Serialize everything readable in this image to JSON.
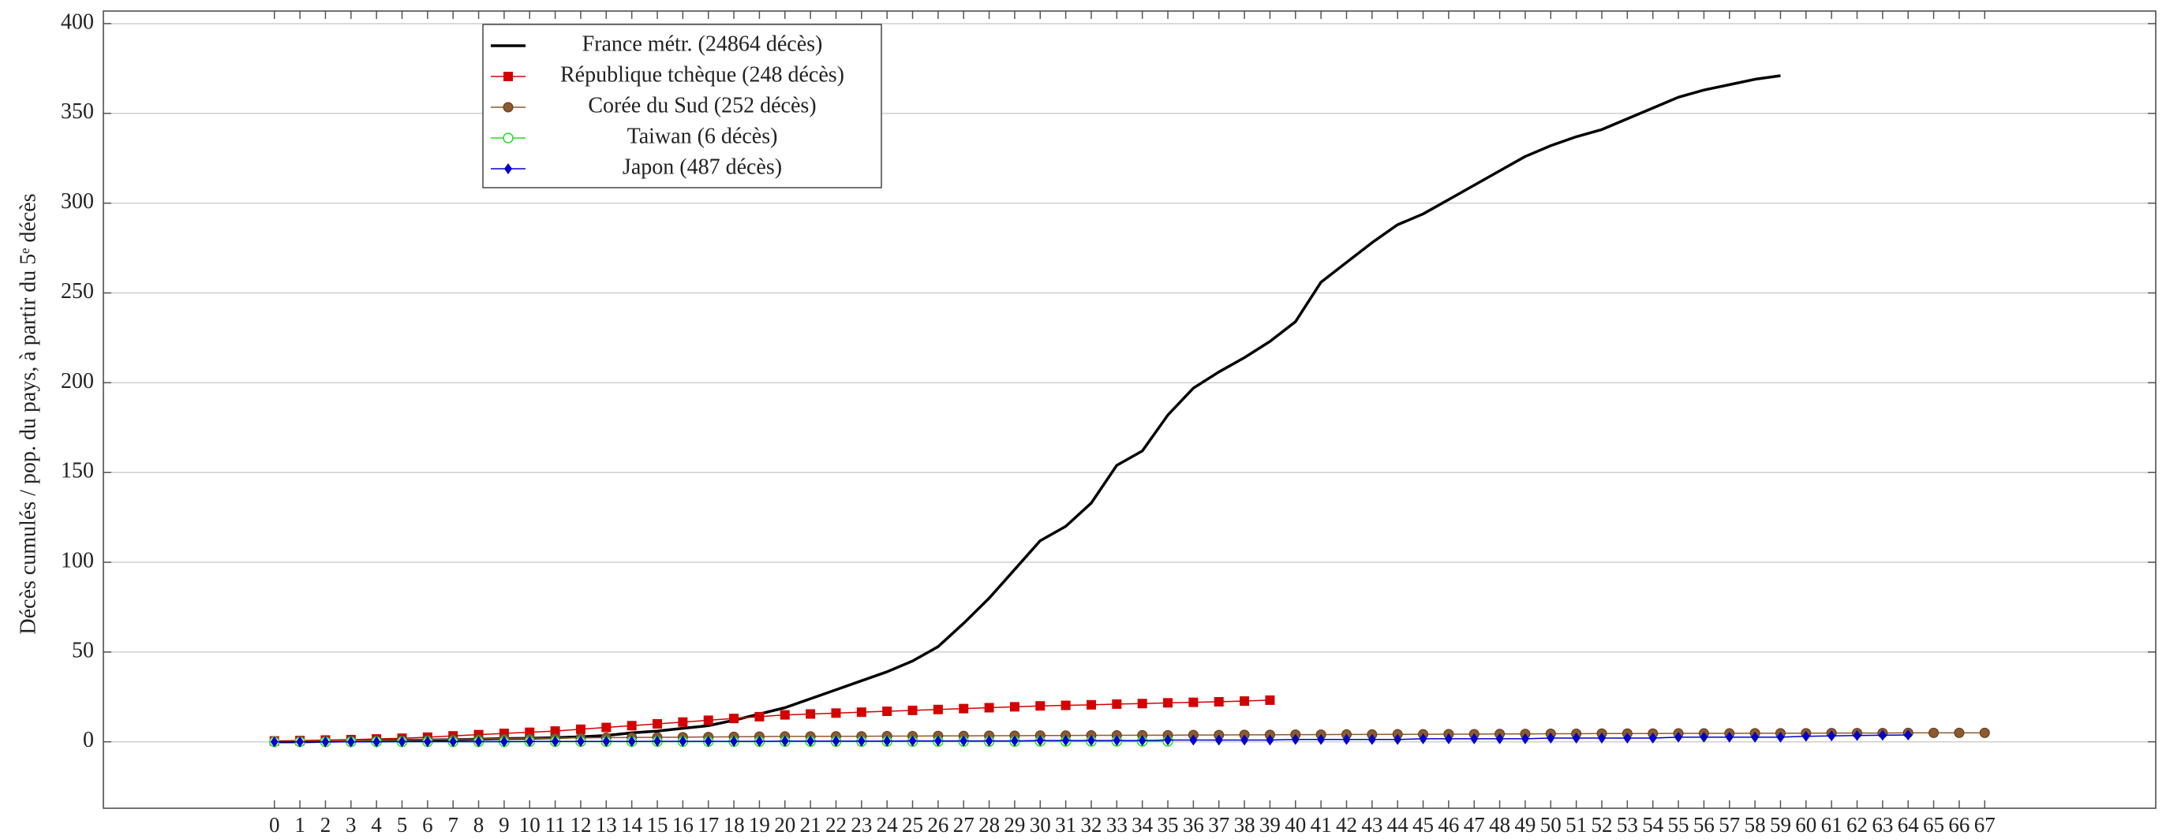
{
  "chart_data": {
    "type": "line",
    "y_label": "Décès cumulés / pop. du pays, à partir du 5ᵉ décès",
    "x": [
      0,
      1,
      2,
      3,
      4,
      5,
      6,
      7,
      8,
      9,
      10,
      11,
      12,
      13,
      14,
      15,
      16,
      17,
      18,
      19,
      20,
      21,
      22,
      23,
      24,
      25,
      26,
      27,
      28,
      29,
      30,
      31,
      32,
      33,
      34,
      35,
      36,
      37,
      38,
      39,
      40,
      41,
      42,
      43,
      44,
      45,
      46,
      47,
      48,
      49,
      50,
      51,
      52,
      53,
      54,
      55,
      56,
      57,
      58,
      59,
      60,
      61,
      62,
      63,
      64,
      65,
      66,
      67
    ],
    "xlim": [
      -6.7,
      73.7
    ],
    "xticks": [
      0,
      1,
      2,
      3,
      4,
      5,
      6,
      7,
      8,
      9,
      10,
      11,
      12,
      13,
      14,
      15,
      16,
      17,
      18,
      19,
      20,
      21,
      22,
      23,
      24,
      25,
      26,
      27,
      28,
      29,
      30,
      31,
      32,
      33,
      34,
      35,
      36,
      37,
      38,
      39,
      40,
      41,
      42,
      43,
      44,
      45,
      46,
      47,
      48,
      49,
      50,
      51,
      52,
      53,
      54,
      55,
      56,
      57,
      58,
      59,
      60,
      61,
      62,
      63,
      64,
      65,
      66,
      67
    ],
    "ylim": [
      -37,
      407
    ],
    "yticks": [
      0,
      50,
      100,
      150,
      200,
      250,
      300,
      350,
      400
    ],
    "grid": true,
    "legend": "upper left",
    "series": [
      {
        "name": "France métr. (24864 décès)",
        "color": "#000000",
        "marker": "none",
        "values": [
          0,
          0,
          0.3,
          0.5,
          0.7,
          0.9,
          1,
          1.2,
          1.5,
          1.8,
          2,
          2.3,
          2.8,
          3.5,
          5,
          6,
          7.5,
          9,
          12,
          15.5,
          19,
          24,
          29,
          34,
          39,
          45,
          53,
          66,
          80,
          96,
          112,
          120,
          133,
          154,
          162,
          182,
          197,
          206,
          214,
          223,
          234,
          256,
          267,
          278,
          288,
          294,
          302,
          310,
          318,
          326,
          332,
          337,
          341,
          347,
          353,
          359,
          363,
          366,
          369,
          371,
          null,
          null,
          null,
          null,
          null,
          null,
          null,
          null
        ]
      },
      {
        "name": "République tchèque (248 décès)",
        "color": "#d40000",
        "marker": "square",
        "values": [
          0.5,
          0.7,
          1,
          1.2,
          1.6,
          2,
          2.6,
          3.3,
          4,
          4.7,
          5.3,
          6,
          7,
          8,
          9,
          10,
          11,
          12,
          13,
          14,
          15,
          15.5,
          16,
          16.5,
          17,
          17.5,
          18,
          18.5,
          19,
          19.5,
          20,
          20.3,
          20.6,
          21,
          21.3,
          21.7,
          22,
          22.3,
          22.7,
          23.2,
          null,
          null,
          null,
          null,
          null,
          null,
          null,
          null,
          null,
          null,
          null,
          null,
          null,
          null,
          null,
          null,
          null,
          null,
          null,
          null,
          null,
          null,
          null,
          null,
          null,
          null,
          null,
          null
        ]
      },
      {
        "name": "Corée du Sud (252 décès)",
        "color": "#8c5a2e",
        "marker": "circle",
        "values": [
          0.1,
          0.2,
          0.4,
          0.6,
          0.8,
          1.0,
          1.2,
          1.4,
          1.6,
          1.8,
          2.0,
          2.1,
          2.2,
          2.3,
          2.4,
          2.5,
          2.6,
          2.7,
          2.8,
          2.9,
          3.0,
          3.0,
          3.1,
          3.1,
          3.2,
          3.2,
          3.3,
          3.3,
          3.4,
          3.4,
          3.5,
          3.5,
          3.6,
          3.6,
          3.7,
          3.7,
          3.8,
          3.8,
          3.9,
          3.9,
          4.0,
          4.0,
          4.1,
          4.1,
          4.2,
          4.2,
          4.3,
          4.3,
          4.4,
          4.4,
          4.5,
          4.5,
          4.6,
          4.6,
          4.6,
          4.7,
          4.7,
          4.7,
          4.8,
          4.8,
          4.8,
          4.9,
          4.9,
          4.9,
          5.0,
          5.0,
          5.0,
          5.0
        ]
      },
      {
        "name": "Taiwan (6 décès)",
        "color": "#22dd22",
        "marker": "open-circle",
        "values": [
          0,
          0,
          0,
          0,
          0,
          0,
          0,
          0,
          0,
          0,
          0.1,
          0.1,
          0.1,
          0.1,
          0.1,
          0.1,
          0.1,
          0.1,
          0.1,
          0.1,
          0.2,
          0.2,
          0.2,
          0.2,
          0.2,
          0.2,
          0.2,
          0.2,
          0.2,
          0.2,
          0.3,
          0.3,
          0.3,
          0.3,
          0.3,
          0.3,
          null,
          null,
          null,
          null,
          null,
          null,
          null,
          null,
          null,
          null,
          null,
          null,
          null,
          null,
          null,
          null,
          null,
          null,
          null,
          null,
          null,
          null,
          null,
          null,
          null,
          null,
          null,
          null,
          null,
          null,
          null,
          null
        ]
      },
      {
        "name": "Japon (487 décès)",
        "color": "#0000cc",
        "marker": "diamond",
        "values": [
          0,
          0,
          0,
          0,
          0,
          0.1,
          0.1,
          0.1,
          0.1,
          0.1,
          0.2,
          0.2,
          0.2,
          0.2,
          0.2,
          0.3,
          0.3,
          0.3,
          0.3,
          0.3,
          0.4,
          0.4,
          0.4,
          0.4,
          0.4,
          0.5,
          0.5,
          0.5,
          0.5,
          0.5,
          0.7,
          0.7,
          0.7,
          0.7,
          0.7,
          1.0,
          1.0,
          1.0,
          1.0,
          1.0,
          1.3,
          1.3,
          1.3,
          1.3,
          1.3,
          1.7,
          1.7,
          1.7,
          1.7,
          1.7,
          2.1,
          2.1,
          2.1,
          2.1,
          2.1,
          2.6,
          2.6,
          2.6,
          2.6,
          2.6,
          3.1,
          3.3,
          3.5,
          3.7,
          3.8,
          null,
          null,
          null
        ]
      }
    ]
  }
}
